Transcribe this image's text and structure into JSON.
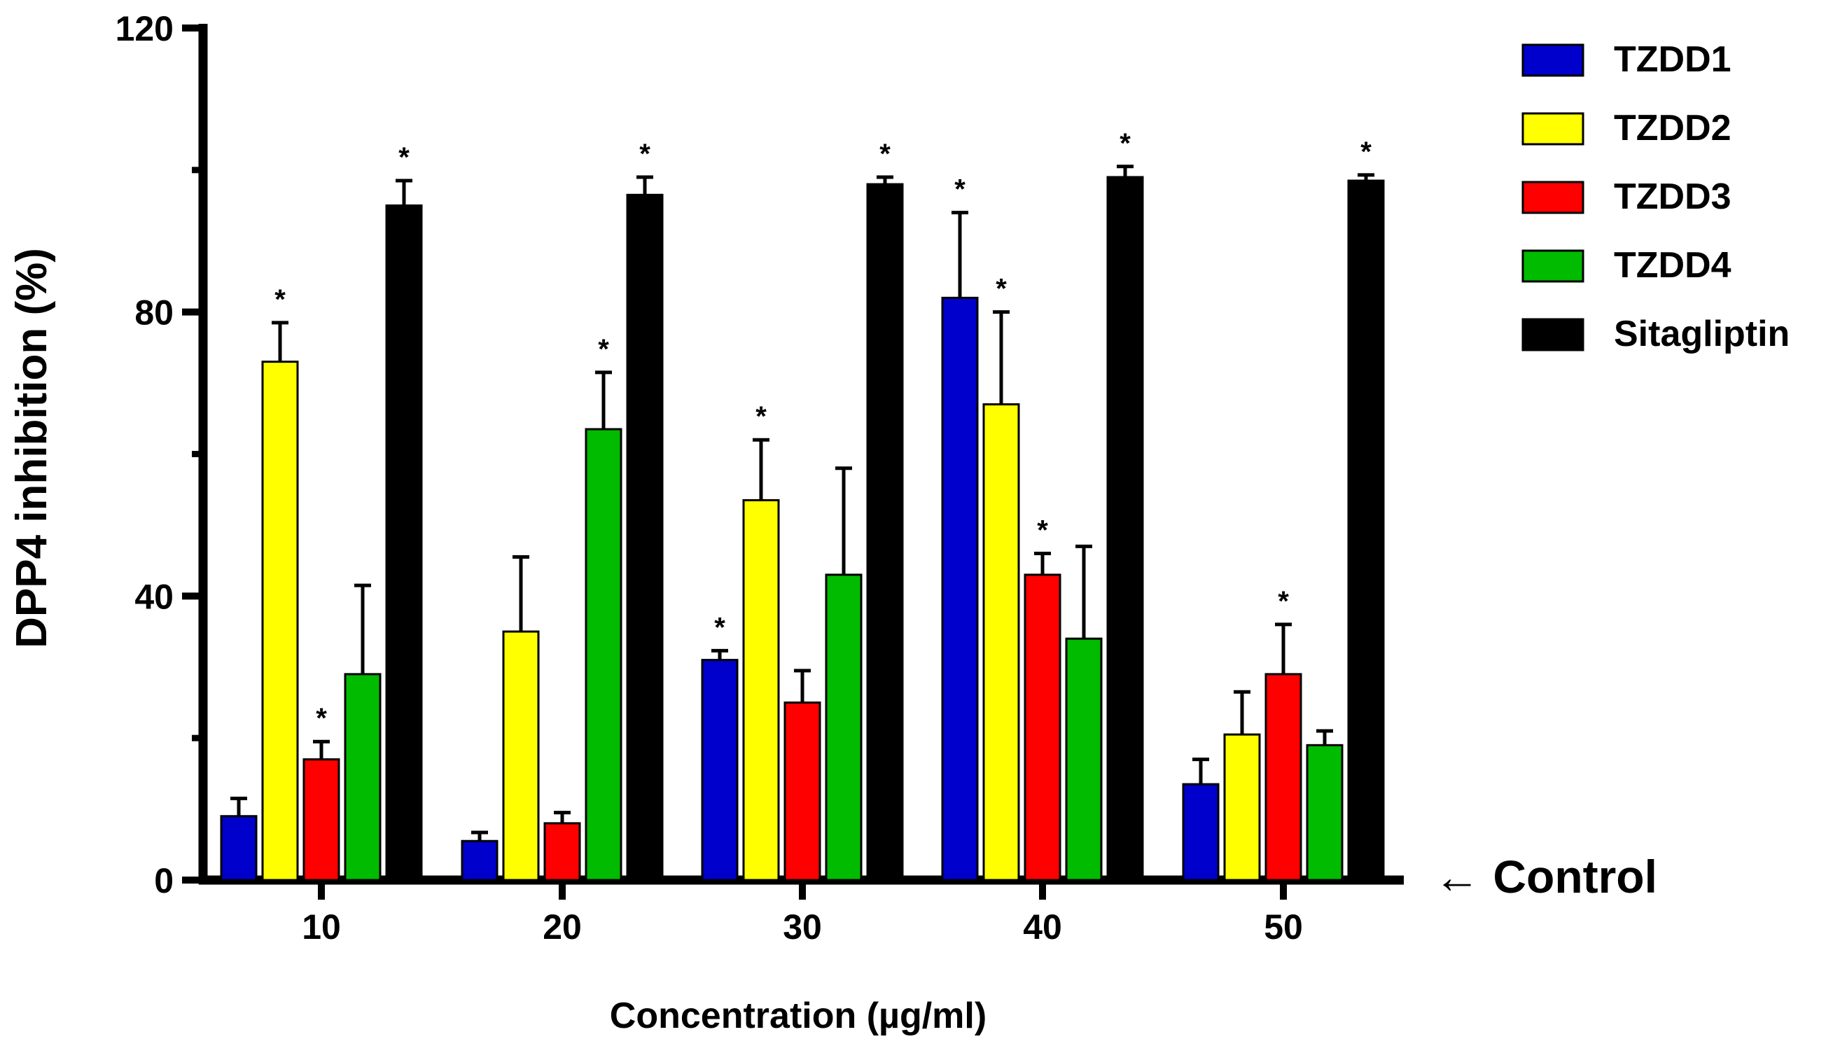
{
  "chart_data": {
    "type": "bar",
    "title": "",
    "xlabel": "Concentration (µg/ml)",
    "ylabel": "DPP4 inhibition (%)",
    "ylim": [
      0,
      120
    ],
    "yticks": [
      0,
      40,
      80,
      120
    ],
    "minor_ticks": [
      20,
      60,
      100
    ],
    "grid": false,
    "legend_position": "top-right",
    "categories": [
      "10",
      "20",
      "30",
      "40",
      "50"
    ],
    "significance_marker": "*",
    "annotation": "← Control",
    "series": [
      {
        "name": "TZDD1",
        "color": "#0000CC",
        "values": [
          9,
          5.5,
          31,
          82,
          13.5
        ],
        "errors": [
          2.5,
          1.2,
          1.3,
          12,
          3.5
        ],
        "significant": [
          false,
          false,
          true,
          true,
          false
        ]
      },
      {
        "name": "TZDD2",
        "color": "#FFFF00",
        "values": [
          73,
          35,
          53.5,
          67,
          20.5
        ],
        "errors": [
          5.5,
          10.5,
          8.5,
          13,
          6
        ],
        "significant": [
          true,
          false,
          true,
          true,
          false
        ]
      },
      {
        "name": "TZDD3",
        "color": "#FF0000",
        "values": [
          17,
          8,
          25,
          43,
          29
        ],
        "errors": [
          2.5,
          1.5,
          4.5,
          3,
          7
        ],
        "significant": [
          true,
          false,
          false,
          true,
          true
        ]
      },
      {
        "name": "TZDD4",
        "color": "#00BB00",
        "values": [
          29,
          63.5,
          43,
          34,
          19
        ],
        "errors": [
          12.5,
          8,
          15,
          13,
          2
        ],
        "significant": [
          false,
          true,
          false,
          false,
          false
        ]
      },
      {
        "name": "Sitagliptin",
        "color": "#000000",
        "values": [
          95,
          96.5,
          98,
          99,
          98.5
        ],
        "errors": [
          3.5,
          2.5,
          1,
          1.5,
          0.8
        ],
        "significant": [
          true,
          true,
          true,
          true,
          true
        ]
      }
    ]
  }
}
